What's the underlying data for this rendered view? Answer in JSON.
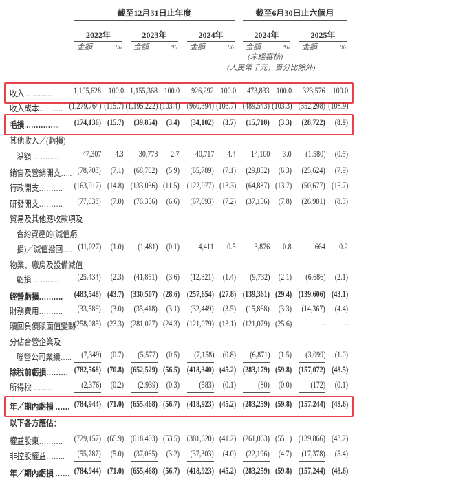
{
  "header": {
    "group_year": "截至12月31日止年度",
    "group_six_months": "截至6月30日止六個月",
    "years": [
      "2022年",
      "2023年",
      "2024年",
      "2024年",
      "2025年"
    ],
    "amount_label": "金額",
    "percent_label": "%",
    "unaudited": "(未經審核)",
    "unit_note": "(人民幣千元，百分比除外)"
  },
  "rows": [
    {
      "label": "收入 …………..",
      "values": [
        "1,105,628",
        "100.0",
        "1,155,368",
        "100.0",
        "926,292",
        "100.0",
        "473,833",
        "100.0",
        "323,576",
        "100.0"
      ],
      "highlight": true
    },
    {
      "label": "收入成本……….",
      "values": [
        "(1,279,764)",
        "(115.7)",
        "(1,195,222)",
        "(103.4)",
        "(960,394)",
        "(103.7)",
        "(489,543)",
        "(103.3)",
        "(352,298)",
        "(108.9)"
      ]
    },
    {
      "label": "毛損 …………..",
      "values": [
        "(174,136)",
        "(15.7)",
        "(39,854)",
        "(3.4)",
        "(34,102)",
        "(3.7)",
        "(15,710)",
        "(3.3)",
        "(28,722)",
        "(8.9)"
      ],
      "bold": true,
      "highlight": true
    },
    {
      "label": "其他收入／(虧損)"
    },
    {
      "label": "淨額 ………..",
      "values": [
        "47,307",
        "4.3",
        "30,773",
        "2.7",
        "40,717",
        "4.4",
        "14,100",
        "3.0",
        "(1,580)",
        "(0.5)"
      ],
      "indent": true
    },
    {
      "label": "銷售及營銷開支…..",
      "values": [
        "(78,708)",
        "(7.1)",
        "(68,702)",
        "(5.9)",
        "(65,789)",
        "(7.1)",
        "(29,852)",
        "(6.3)",
        "(25,624)",
        "(7.9)"
      ]
    },
    {
      "label": "行政開支……….",
      "values": [
        "(163,917)",
        "(14.8)",
        "(133,036)",
        "(11.5)",
        "(122,977)",
        "(13.3)",
        "(64,887)",
        "(13.7)",
        "(50,677)",
        "(15.7)"
      ]
    },
    {
      "label": "研發開支……….",
      "values": [
        "(77,633)",
        "(7.0)",
        "(76,356)",
        "(6.6)",
        "(67,093)",
        "(7.2)",
        "(37,156)",
        "(7.8)",
        "(26,981)",
        "(8.3)"
      ]
    },
    {
      "label": "貿易及其他應收款項及"
    },
    {
      "label": "合約資產的(減值虧",
      "indent": true
    },
    {
      "label": "損)／減值撥回….",
      "values": [
        "(11,027)",
        "(1.0)",
        "(1,481)",
        "(0.1)",
        "4,411",
        "0.5",
        "3,876",
        "0.8",
        "664",
        "0.2"
      ],
      "indent": true
    },
    {
      "label": "物業、廠房及設備減值"
    },
    {
      "label": "虧損 ………..",
      "values": [
        "(25,434)",
        "(2.3)",
        "(41,851)",
        "(3.6)",
        "(12,821)",
        "(1.4)",
        "(9,732)",
        "(2.1)",
        "(6,686)",
        "(2.1)"
      ],
      "indent": true,
      "underline": "single"
    },
    {
      "label": "經營虧損……….",
      "values": [
        "(483,548)",
        "(43.7)",
        "(330,507)",
        "(28.6)",
        "(257,654)",
        "(27.8)",
        "(139,361)",
        "(29.4)",
        "(139,606)",
        "(43.1)"
      ],
      "bold": true
    },
    {
      "label": "財務費用……….",
      "values": [
        "(33,586)",
        "(3.0)",
        "(35,418)",
        "(3.1)",
        "(32,449)",
        "(3.5)",
        "(15,868)",
        "(3.3)",
        "(14,367)",
        "(4.4)"
      ]
    },
    {
      "label": "贖回負債賬面值變動 .",
      "values": [
        "(258,085)",
        "(23.3)",
        "(281,027)",
        "(24.3)",
        "(121,079)",
        "(13.1)",
        "(121,079)",
        "(25.6)",
        "–",
        "–"
      ]
    },
    {
      "label": "分佔合營企業及"
    },
    {
      "label": "聯營公司業績…..",
      "values": [
        "(7,349)",
        "(0.7)",
        "(5,577)",
        "(0.5)",
        "(7,158)",
        "(0.8)",
        "(6,871)",
        "(1.5)",
        "(3,099)",
        "(1.0)"
      ],
      "indent": true,
      "underline": "single"
    },
    {
      "label": "除稅前虧損………",
      "values": [
        "(782,568)",
        "(70.8)",
        "(652,529)",
        "(56.5)",
        "(418,340)",
        "(45.2)",
        "(283,179)",
        "(59.8)",
        "(157,072)",
        "(48.5)"
      ],
      "bold": true
    },
    {
      "label": "所得稅 ………..",
      "values": [
        "(2,376)",
        "(0.2)",
        "(2,939)",
        "(0.3)",
        "(583)",
        "(0.1)",
        "(80)",
        "(0.0)",
        "(172)",
        "(0.1)"
      ],
      "underline": "single"
    },
    {
      "label": "年／期內虧損 ……",
      "values": [
        "(784,944)",
        "(71.0)",
        "(655,468)",
        "(56.7)",
        "(418,923)",
        "(45.2)",
        "(283,259)",
        "(59.8)",
        "(157,244)",
        "(48.6)"
      ],
      "bold": true,
      "highlight": true,
      "underline": "single"
    },
    {
      "label": "以下各方應佔：",
      "bold": true
    },
    {
      "label": "權益股東……….",
      "values": [
        "(729,157)",
        "(65.9)",
        "(618,403)",
        "(53.5)",
        "(381,620)",
        "(41.2)",
        "(261,063)",
        "(55.1)",
        "(139,866)",
        "(43.2)"
      ]
    },
    {
      "label": "非控股權益……..",
      "values": [
        "(55,787)",
        "(5.0)",
        "(37,065)",
        "(3.2)",
        "(37,303)",
        "(4.0)",
        "(22,196)",
        "(4.7)",
        "(17,378)",
        "(5.4)"
      ],
      "underline": "single"
    },
    {
      "label": "年／期內虧損 ……",
      "values": [
        "(784,944)",
        "(71.0)",
        "(655,468)",
        "(56.7)",
        "(418,923)",
        "(45.2)",
        "(283,259)",
        "(59.8)",
        "(157,244)",
        "(48.6)"
      ],
      "bold": true,
      "underline": "double"
    }
  ],
  "colors": {
    "highlight_box": "#e8414a"
  }
}
